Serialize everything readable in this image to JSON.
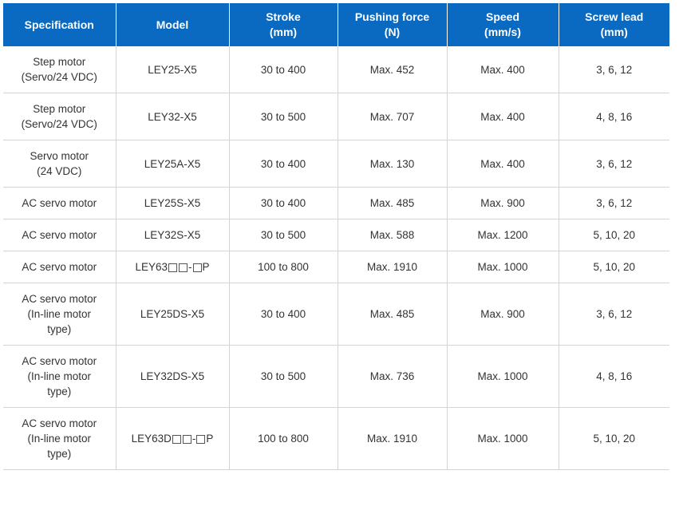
{
  "header": {
    "specification": [
      "Specification"
    ],
    "model": [
      "Model"
    ],
    "stroke": [
      "Stroke",
      "(mm)"
    ],
    "pushing_force": [
      "Pushing force",
      "(N)"
    ],
    "speed": [
      "Speed",
      "(mm/s)"
    ],
    "screw_lead": [
      "Screw lead",
      "(mm)"
    ]
  },
  "rows": [
    {
      "spec": [
        "Step motor",
        "(Servo/24 VDC)"
      ],
      "model": "LEY25-X5",
      "stroke": "30 to 400",
      "force": "Max. 452",
      "speed": "Max. 400",
      "lead": "3, 6, 12"
    },
    {
      "spec": [
        "Step motor",
        "(Servo/24 VDC)"
      ],
      "model": "LEY32-X5",
      "stroke": "30 to 500",
      "force": "Max. 707",
      "speed": "Max. 400",
      "lead": "4, 8, 16"
    },
    {
      "spec": [
        "Servo motor",
        "(24 VDC)"
      ],
      "model": "LEY25A-X5",
      "stroke": "30 to 400",
      "force": "Max. 130",
      "speed": "Max. 400",
      "lead": "3, 6, 12"
    },
    {
      "spec": [
        "AC servo motor"
      ],
      "model": "LEY25S-X5",
      "stroke": "30 to 400",
      "force": "Max. 485",
      "speed": "Max. 900",
      "lead": "3, 6, 12"
    },
    {
      "spec": [
        "AC servo motor"
      ],
      "model": "LEY32S-X5",
      "stroke": "30 to 500",
      "force": "Max. 588",
      "speed": "Max. 1200",
      "lead": "5, 10, 20"
    },
    {
      "spec": [
        "AC servo motor"
      ],
      "model_parts": [
        "LEY63",
        "□",
        "□",
        "-",
        "□",
        "P"
      ],
      "stroke": "100 to 800",
      "force": "Max. 1910",
      "speed": "Max. 1000",
      "lead": "5, 10, 20"
    },
    {
      "spec": [
        "AC servo motor",
        "(In-line motor",
        "type)"
      ],
      "model": "LEY25DS-X5",
      "stroke": "30 to 400",
      "force": "Max. 485",
      "speed": "Max. 900",
      "lead": "3, 6, 12"
    },
    {
      "spec": [
        "AC servo motor",
        "(In-line motor",
        "type)"
      ],
      "model": "LEY32DS-X5",
      "stroke": "30 to 500",
      "force": "Max. 736",
      "speed": "Max. 1000",
      "lead": "4, 8, 16"
    },
    {
      "spec": [
        "AC servo motor",
        "(In-line motor",
        "type)"
      ],
      "model_parts": [
        "LEY63D",
        "□",
        "□",
        "-",
        "□",
        "P"
      ],
      "stroke": "100 to 800",
      "force": "Max. 1910",
      "speed": "Max. 1000",
      "lead": "5, 10, 20"
    }
  ],
  "colors": {
    "header_bg": "#0a6ac2",
    "header_text": "#ffffff",
    "grid_line": "#d4d4d4",
    "body_text": "#333333"
  }
}
